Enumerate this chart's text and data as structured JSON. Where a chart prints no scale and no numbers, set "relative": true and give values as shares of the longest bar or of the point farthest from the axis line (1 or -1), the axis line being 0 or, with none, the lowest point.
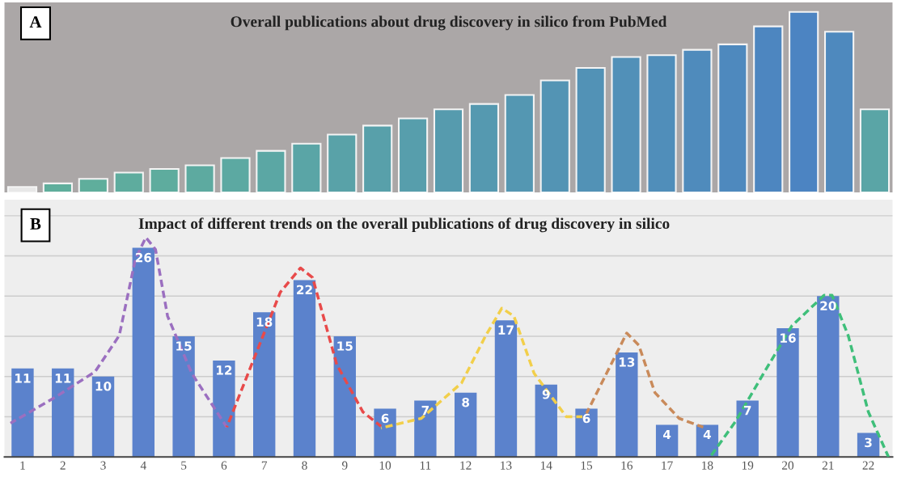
{
  "chart_data": [
    {
      "type": "bar",
      "title": "Overall publications about drug discovery in silico from PubMed",
      "relative": true,
      "annotations": [
        "A"
      ],
      "tick_labels": false,
      "grid": false,
      "categories": [
        null,
        null,
        null,
        null,
        null,
        null,
        null,
        null,
        null,
        null,
        null,
        null,
        null,
        null,
        null,
        null,
        null,
        null,
        null,
        null,
        null,
        null,
        null,
        null,
        null
      ],
      "values": [
        0.03,
        0.05,
        0.075,
        0.11,
        0.13,
        0.15,
        0.19,
        0.23,
        0.27,
        0.32,
        0.37,
        0.41,
        0.46,
        0.49,
        0.54,
        0.62,
        0.69,
        0.75,
        0.76,
        0.79,
        0.82,
        0.92,
        1.0,
        0.89,
        0.46
      ],
      "colors": [
        "#e8e8e8",
        "#5fae9c",
        "#5fae9c",
        "#5eac9e",
        "#5eac9e",
        "#5daaa0",
        "#5ca9a2",
        "#5ba7a4",
        "#5aa5a6",
        "#59a2a8",
        "#58a0aa",
        "#579eac",
        "#569bae",
        "#5599b0",
        "#5497b2",
        "#5394b4",
        "#5292b6",
        "#5190b8",
        "#508eba",
        "#4f8bbc",
        "#4e89be",
        "#4d86c0",
        "#4c84c2",
        "#4e89be",
        "#5aa5a6"
      ]
    },
    {
      "type": "bar",
      "title": "Impact of different trends on the overall publications of drug discovery in silico",
      "annotations": [
        "B"
      ],
      "grid": "y",
      "tick_labels": "x",
      "x": [
        1,
        2,
        3,
        4,
        5,
        6,
        7,
        8,
        9,
        10,
        11,
        12,
        13,
        14,
        15,
        16,
        17,
        18,
        19,
        20,
        21,
        22
      ],
      "xlim": [
        0.55,
        22.6
      ],
      "xticks": [
        1,
        2,
        3,
        4,
        5,
        6,
        7,
        8,
        9,
        10,
        11,
        12,
        13,
        14,
        15,
        16,
        17,
        18,
        19,
        20,
        21,
        22
      ],
      "ylim": [
        0,
        32
      ],
      "yticks": [
        {
          "value": 5,
          "label": null
        },
        {
          "value": 10,
          "label": null
        },
        {
          "value": 15,
          "label": null
        },
        {
          "value": 20,
          "label": null
        },
        {
          "value": 25,
          "label": null
        },
        {
          "value": 30,
          "label": null
        }
      ],
      "series": [
        {
          "type": "bar",
          "color": "#5b82cc",
          "values": [
            11,
            11,
            10,
            26,
            15,
            12,
            18,
            22,
            15,
            6,
            7,
            8,
            17,
            9,
            6,
            13,
            4,
            4,
            7,
            16,
            20,
            3
          ],
          "value_labels": [
            "11",
            "11",
            "10",
            "26",
            "15",
            "12",
            "18",
            "22",
            "15",
            "6",
            "7",
            "8",
            "17",
            "9",
            "6",
            "13",
            "4",
            "4",
            "7",
            "16",
            "20",
            "3"
          ]
        },
        {
          "type": "line",
          "color": "#9b6fc0",
          "line_style": "dashed",
          "x": [
            0.7,
            1.8,
            2.8,
            3.4,
            3.8,
            4.06,
            4.3,
            4.6,
            5.2,
            6.07
          ],
          "values": [
            4.2,
            7.4,
            10.6,
            15.1,
            24.6,
            27.3,
            25.8,
            17.5,
            10.4,
            3.7
          ]
        },
        {
          "type": "line",
          "color": "#e84a4a",
          "line_style": "dashed",
          "x": [
            6.07,
            6.6,
            7.4,
            7.9,
            8.2,
            8.8,
            9.45,
            9.9
          ],
          "values": [
            3.7,
            10.4,
            20.5,
            23.5,
            22.3,
            11.5,
            5.6,
            3.8
          ]
        },
        {
          "type": "line",
          "color": "#f2cf4a",
          "line_style": "dashed",
          "x": [
            9.9,
            10.9,
            11.9,
            12.5,
            12.9,
            13.2,
            13.7,
            14.5,
            14.9
          ],
          "values": [
            3.6,
            4.8,
            9.2,
            15.1,
            18.5,
            17.5,
            10.4,
            5.0,
            5.0
          ]
        },
        {
          "type": "line",
          "color": "#c98a5a",
          "line_style": "dashed",
          "x": [
            15.0,
            15.5,
            16.0,
            16.3,
            16.7,
            17.3,
            17.9
          ],
          "values": [
            5.4,
            10.4,
            15.4,
            13.9,
            8.0,
            4.8,
            3.7
          ]
        },
        {
          "type": "line",
          "color": "#3fbf7a",
          "line_style": "dashed",
          "x": [
            18.1,
            18.7,
            19.4,
            20.1,
            20.9,
            21.1,
            21.5,
            22.0,
            22.5
          ],
          "values": [
            0.2,
            4.4,
            10.4,
            16.3,
            20.1,
            20.1,
            15.1,
            5.6,
            0
          ]
        }
      ]
    }
  ]
}
